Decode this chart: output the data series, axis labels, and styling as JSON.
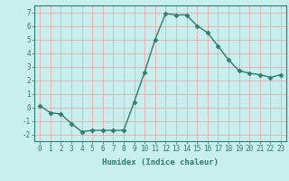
{
  "x": [
    0,
    1,
    2,
    3,
    4,
    5,
    6,
    7,
    8,
    9,
    10,
    11,
    12,
    13,
    14,
    15,
    16,
    17,
    18,
    19,
    20,
    21,
    22,
    23
  ],
  "y": [
    0.1,
    -0.4,
    -0.5,
    -1.2,
    -1.8,
    -1.7,
    -1.7,
    -1.7,
    -1.7,
    0.4,
    2.6,
    5.0,
    6.9,
    6.8,
    6.8,
    6.0,
    5.5,
    4.5,
    3.5,
    2.7,
    2.5,
    2.4,
    2.2,
    2.4
  ],
  "line_color": "#2e7d6e",
  "marker": "D",
  "marker_size": 2.5,
  "bg_color": "#c8eeee",
  "grid_color": "#f0a0a0",
  "xlabel": "Humidex (Indice chaleur)",
  "ylabel": "",
  "xlim": [
    -0.5,
    23.5
  ],
  "ylim": [
    -2.5,
    7.5
  ],
  "yticks": [
    -2,
    -1,
    0,
    1,
    2,
    3,
    4,
    5,
    6,
    7
  ],
  "xticks": [
    0,
    1,
    2,
    3,
    4,
    5,
    6,
    7,
    8,
    9,
    10,
    11,
    12,
    13,
    14,
    15,
    16,
    17,
    18,
    19,
    20,
    21,
    22,
    23
  ],
  "tick_label_fontsize": 5.5,
  "xlabel_fontsize": 6.5,
  "linewidth": 1.0
}
